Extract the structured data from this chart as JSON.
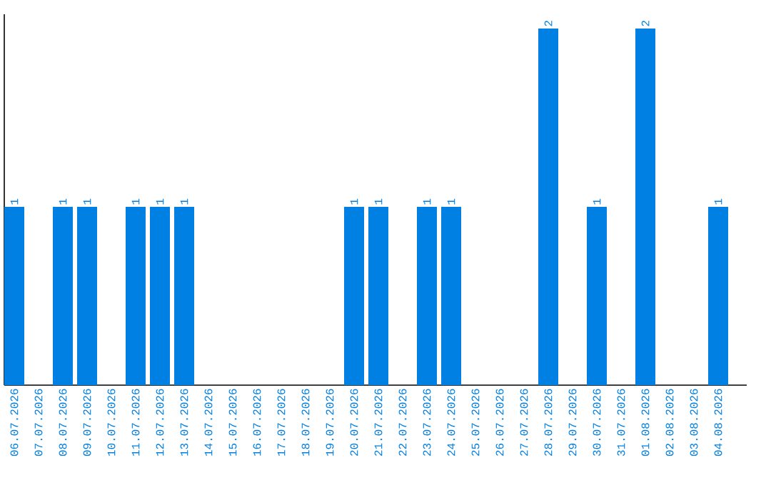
{
  "chart_data": {
    "type": "bar",
    "categories": [
      "06.07.2026",
      "07.07.2026",
      "08.07.2026",
      "09.07.2026",
      "10.07.2026",
      "11.07.2026",
      "12.07.2026",
      "13.07.2026",
      "14.07.2026",
      "15.07.2026",
      "16.07.2026",
      "17.07.2026",
      "18.07.2026",
      "19.07.2026",
      "20.07.2026",
      "21.07.2026",
      "22.07.2026",
      "23.07.2026",
      "24.07.2026",
      "25.07.2026",
      "26.07.2026",
      "27.07.2026",
      "28.07.2026",
      "29.07.2026",
      "30.07.2026",
      "31.07.2026",
      "01.08.2026",
      "02.08.2026",
      "03.08.2026",
      "04.08.2026"
    ],
    "values": [
      1,
      0,
      1,
      1,
      0,
      1,
      1,
      1,
      0,
      0,
      0,
      0,
      0,
      0,
      1,
      1,
      0,
      1,
      1,
      0,
      0,
      0,
      2,
      0,
      1,
      0,
      2,
      0,
      0,
      1
    ],
    "value_labels": [
      "1",
      null,
      "1",
      "1",
      null,
      "1",
      "1",
      "1",
      null,
      null,
      null,
      null,
      null,
      null,
      "1",
      "1",
      null,
      "1",
      "1",
      null,
      null,
      null,
      "2",
      null,
      "1",
      null,
      "2",
      null,
      null,
      "1"
    ],
    "color": "#0080e3",
    "ylim": [
      0,
      2.08
    ],
    "tick_labels": "x"
  }
}
